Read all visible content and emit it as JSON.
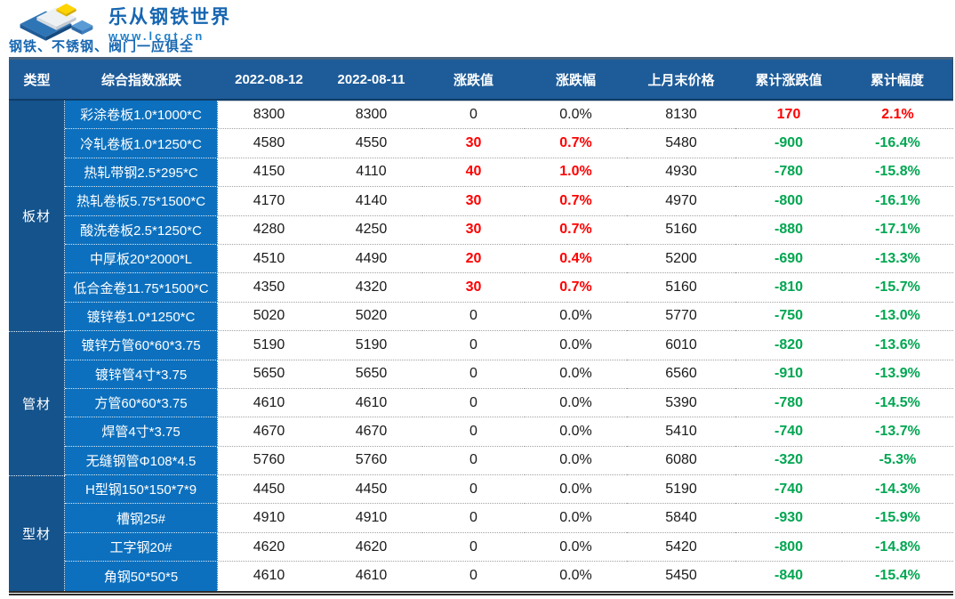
{
  "brand": {
    "name": "乐从钢铁世界",
    "url": "www.lcgt.cn",
    "tagline": "钢铁、不锈钢、阀门一应俱全"
  },
  "colors": {
    "header_bg": "#1e5c99",
    "category_bg": "#14538c",
    "product_bg": "#0c70be",
    "up_red": "#fe0000",
    "down_green": "#00a651",
    "neutral_text": "#1a1a1a",
    "brand_blue": "#1766b1",
    "url_blue": "#2080c8",
    "logo_yellow": "#ffd400",
    "logo_blue": "#2e75b6"
  },
  "table": {
    "headers": [
      "类型",
      "综合指数涨跌",
      "2022-08-12",
      "2022-08-11",
      "涨跌值",
      "涨跌幅",
      "上月末价格",
      "累计涨跌值",
      "累计幅度"
    ],
    "groups": [
      {
        "label": "板材",
        "rows": [
          [
            "彩涂卷板1.0*1000*C",
            "8300",
            "8300",
            "0",
            "0.0%",
            "8130",
            "170",
            "2.1%"
          ],
          [
            "冷轧卷板1.0*1250*C",
            "4580",
            "4550",
            "30",
            "0.7%",
            "5480",
            "-900",
            "-16.4%"
          ],
          [
            "热轧带钢2.5*295*C",
            "4150",
            "4110",
            "40",
            "1.0%",
            "4930",
            "-780",
            "-15.8%"
          ],
          [
            "热轧卷板5.75*1500*C",
            "4170",
            "4140",
            "30",
            "0.7%",
            "4970",
            "-800",
            "-16.1%"
          ],
          [
            "酸洗卷板2.5*1250*C",
            "4280",
            "4250",
            "30",
            "0.7%",
            "5160",
            "-880",
            "-17.1%"
          ],
          [
            "中厚板20*2000*L",
            "4510",
            "4490",
            "20",
            "0.4%",
            "5200",
            "-690",
            "-13.3%"
          ],
          [
            "低合金卷11.75*1500*C",
            "4350",
            "4320",
            "30",
            "0.7%",
            "5160",
            "-810",
            "-15.7%"
          ],
          [
            "镀锌卷1.0*1250*C",
            "5020",
            "5020",
            "0",
            "0.0%",
            "5770",
            "-750",
            "-13.0%"
          ]
        ]
      },
      {
        "label": "管材",
        "rows": [
          [
            "镀锌方管60*60*3.75",
            "5190",
            "5190",
            "0",
            "0.0%",
            "6010",
            "-820",
            "-13.6%"
          ],
          [
            "镀锌管4寸*3.75",
            "5650",
            "5650",
            "0",
            "0.0%",
            "6560",
            "-910",
            "-13.9%"
          ],
          [
            "方管60*60*3.75",
            "4610",
            "4610",
            "0",
            "0.0%",
            "5390",
            "-780",
            "-14.5%"
          ],
          [
            "焊管4寸*3.75",
            "4670",
            "4670",
            "0",
            "0.0%",
            "5410",
            "-740",
            "-13.7%"
          ],
          [
            "无缝钢管Φ108*4.5",
            "5760",
            "5760",
            "0",
            "0.0%",
            "6080",
            "-320",
            "-5.3%"
          ]
        ]
      },
      {
        "label": "型材",
        "rows": [
          [
            "H型钢150*150*7*9",
            "4450",
            "4450",
            "0",
            "0.0%",
            "5190",
            "-740",
            "-14.3%"
          ],
          [
            "槽钢25#",
            "4910",
            "4910",
            "0",
            "0.0%",
            "5840",
            "-930",
            "-15.9%"
          ],
          [
            "工字钢20#",
            "4620",
            "4620",
            "0",
            "0.0%",
            "5420",
            "-800",
            "-14.8%"
          ],
          [
            "角钢50*50*5",
            "4610",
            "4610",
            "0",
            "0.0%",
            "5450",
            "-840",
            "-15.4%"
          ]
        ]
      }
    ]
  }
}
